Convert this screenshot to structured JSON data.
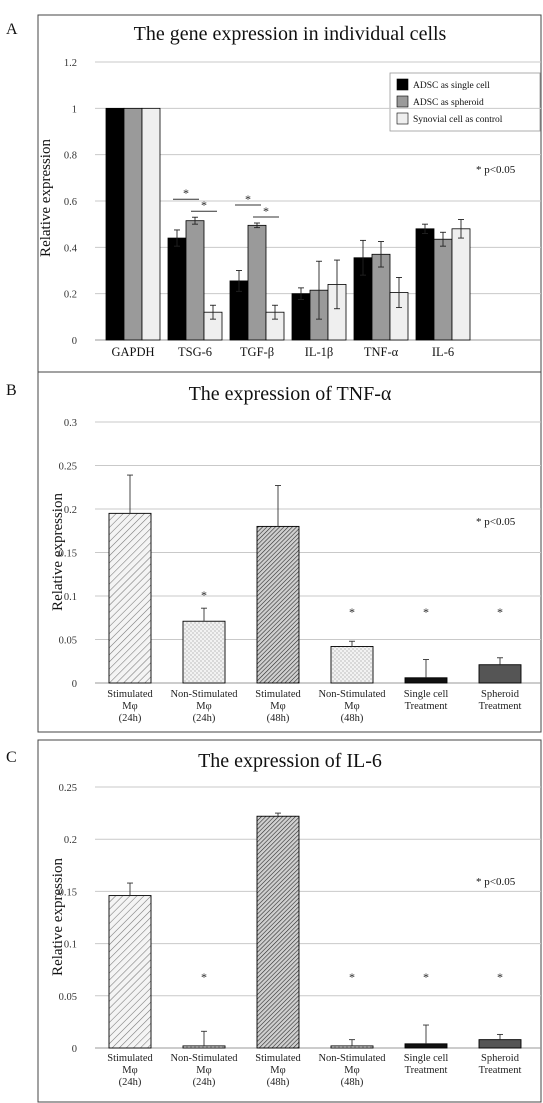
{
  "chart_data": [
    {
      "panel_label": "A",
      "type": "bar",
      "title": "The gene expression in individual cells",
      "ylabel": "Relative expression",
      "xlabel": "",
      "ylim": [
        0,
        1.2
      ],
      "yticks": [
        "0",
        "0.2",
        "0.4",
        "0.6",
        "0.8",
        "1",
        "1.2"
      ],
      "grid": true,
      "legend_position": "top-right",
      "categories": [
        "GAPDH",
        "TSG-6",
        "TGF-β",
        "IL-1β",
        "TNF-α",
        "IL-6"
      ],
      "series": [
        {
          "name": "ADSC as single cell",
          "color": "#000000",
          "values": [
            1.0,
            0.44,
            0.255,
            0.2,
            0.355,
            0.48
          ],
          "errors": [
            0,
            0.035,
            0.045,
            0.025,
            0.075,
            0.02
          ]
        },
        {
          "name": "ADSC as spheroid",
          "color": "#9a9a9a",
          "values": [
            1.0,
            0.515,
            0.495,
            0.215,
            0.37,
            0.435
          ],
          "errors": [
            0,
            0.015,
            0.01,
            0.125,
            0.055,
            0.03
          ]
        },
        {
          "name": "Synovial cell as control",
          "color": "#efefef",
          "values": [
            1.0,
            0.12,
            0.12,
            0.24,
            0.205,
            0.48
          ],
          "errors": [
            0,
            0.03,
            0.03,
            0.105,
            0.065,
            0.04
          ]
        }
      ],
      "note": "* p<0.05",
      "significance": [
        {
          "category": 1,
          "from_series": 0,
          "to_series": 1,
          "label": "*"
        },
        {
          "category": 1,
          "from_series": 1,
          "to_series": 2,
          "label": "*"
        },
        {
          "category": 2,
          "from_series": 0,
          "to_series": 1,
          "label": "*"
        },
        {
          "category": 2,
          "from_series": 1,
          "to_series": 2,
          "label": "*"
        }
      ]
    },
    {
      "panel_label": "B",
      "type": "bar",
      "title": "The expression of TNF-α",
      "ylabel": "Relative expression",
      "xlabel": "",
      "ylim": [
        0,
        0.3
      ],
      "yticks": [
        "0",
        "0.05",
        "0.1",
        "0.15",
        "0.2",
        "0.25",
        "0.3"
      ],
      "grid": true,
      "categories": [
        [
          "Stimulated",
          "Mφ",
          "(24h)"
        ],
        [
          "Non-Stimulated",
          "Mφ",
          "(24h)"
        ],
        [
          "Stimulated",
          "Mφ",
          "(48h)"
        ],
        [
          "Non-Stimulated",
          "Mφ",
          "(48h)"
        ],
        [
          "Single cell",
          "Treatment"
        ],
        [
          "Spheroid",
          "Treatment"
        ]
      ],
      "values": [
        0.195,
        0.071,
        0.18,
        0.042,
        0.006,
        0.021
      ],
      "errors": [
        0.044,
        0.015,
        0.047,
        0.006,
        0.021,
        0.008
      ],
      "bar_styles": [
        "hatch-light",
        "dots",
        "hatch-dense",
        "dots",
        "solid-black",
        "solid-dark"
      ],
      "stars": [
        "",
        "*",
        "",
        "*",
        "*",
        "*"
      ],
      "note": "* p<0.05"
    },
    {
      "panel_label": "C",
      "type": "bar",
      "title": "The expression of IL-6",
      "ylabel": "Relative expression",
      "xlabel": "",
      "ylim": [
        0,
        0.25
      ],
      "yticks": [
        "0",
        "0.05",
        "0.1",
        "0.15",
        "0.2",
        "0.25"
      ],
      "grid": true,
      "categories": [
        [
          "Stimulated",
          "Mφ",
          "(24h)"
        ],
        [
          "Non-Stimulated",
          "Mφ",
          "(24h)"
        ],
        [
          "Stimulated",
          "Mφ",
          "(48h)"
        ],
        [
          "Non-Stimulated",
          "Mφ",
          "(48h)"
        ],
        [
          "Single cell",
          "Treatment"
        ],
        [
          "Spheroid",
          "Treatment"
        ]
      ],
      "values": [
        0.146,
        0.002,
        0.222,
        0.002,
        0.004,
        0.008
      ],
      "errors": [
        0.012,
        0.014,
        0.003,
        0.006,
        0.018,
        0.005
      ],
      "bar_styles": [
        "hatch-light",
        "dots",
        "hatch-dense",
        "dots",
        "solid-black",
        "solid-dark"
      ],
      "stars": [
        "",
        "*",
        "",
        "*",
        "*",
        "*"
      ],
      "note": "* p<0.05"
    }
  ]
}
